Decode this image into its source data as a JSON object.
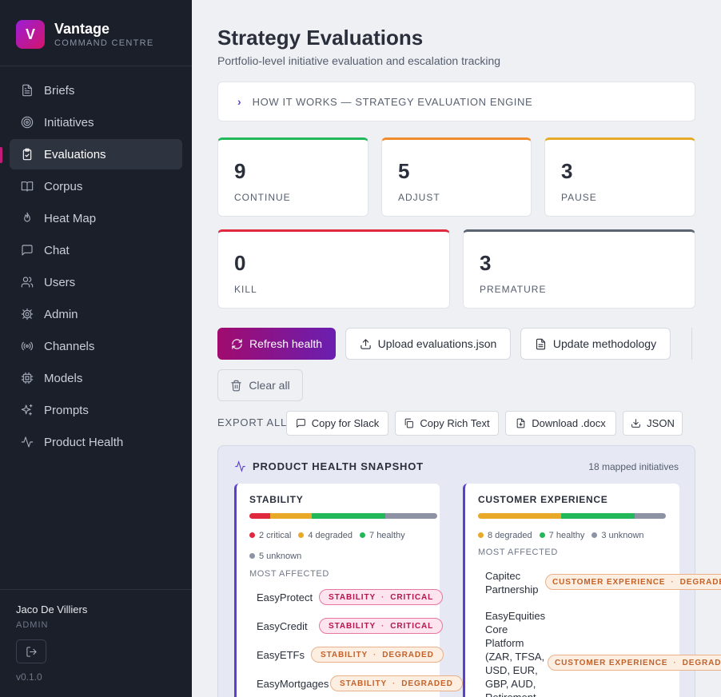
{
  "brand": {
    "logo_letter": "V",
    "name": "Vantage",
    "subtitle": "COMMAND CENTRE"
  },
  "nav": [
    {
      "label": "Briefs",
      "icon": "file-text-icon"
    },
    {
      "label": "Initiatives",
      "icon": "target-icon"
    },
    {
      "label": "Evaluations",
      "icon": "clipboard-check-icon",
      "active": true
    },
    {
      "label": "Corpus",
      "icon": "book-open-icon"
    },
    {
      "label": "Heat Map",
      "icon": "flame-icon"
    },
    {
      "label": "Chat",
      "icon": "chat-icon"
    },
    {
      "label": "Users",
      "icon": "users-icon"
    },
    {
      "label": "Admin",
      "icon": "gear-icon"
    },
    {
      "label": "Channels",
      "icon": "radio-icon"
    },
    {
      "label": "Models",
      "icon": "cpu-icon"
    },
    {
      "label": "Prompts",
      "icon": "sparkles-icon"
    },
    {
      "label": "Product Health",
      "icon": "activity-icon"
    }
  ],
  "user": {
    "name": "Jaco De Villiers",
    "role": "ADMIN"
  },
  "version": "v0.1.0",
  "page": {
    "title": "Strategy Evaluations",
    "subtitle": "Portfolio-level initiative evaluation and escalation tracking",
    "how_it_works": "HOW IT WORKS — STRATEGY EVALUATION ENGINE"
  },
  "stats": [
    {
      "value": "9",
      "label": "CONTINUE",
      "color": "#22b85a"
    },
    {
      "value": "5",
      "label": "ADJUST",
      "color": "#ef8d2e"
    },
    {
      "value": "3",
      "label": "PAUSE",
      "color": "#e8a928"
    },
    {
      "value": "0",
      "label": "KILL",
      "color": "#e0283f"
    },
    {
      "value": "3",
      "label": "PREMATURE",
      "color": "#5d6471"
    }
  ],
  "actions": {
    "refresh": "Refresh health",
    "upload": "Upload evaluations.json",
    "methodology": "Update methodology",
    "clear": "Clear all"
  },
  "export": {
    "label": "EXPORT ALL:",
    "slack": "Copy for Slack",
    "rich_text": "Copy Rich Text",
    "docx": "Download .docx",
    "json": "JSON"
  },
  "snapshot": {
    "title": "PRODUCT HEALTH SNAPSHOT",
    "count": "18 mapped initiatives",
    "most_affected_label": "MOST AFFECTED",
    "colors": {
      "critical": "#e0283f",
      "degraded": "#e8a928",
      "healthy": "#22b85a",
      "unknown": "#8d93a5"
    },
    "stability": {
      "title": "STABILITY",
      "counts": {
        "critical": 2,
        "degraded": 4,
        "healthy": 7,
        "unknown": 5
      },
      "legend": [
        "2 critical",
        "4 degraded",
        "7 healthy",
        "5 unknown"
      ],
      "affected": [
        {
          "name": "EasyProtect",
          "category": "STABILITY",
          "status": "CRITICAL"
        },
        {
          "name": "EasyCredit",
          "category": "STABILITY",
          "status": "CRITICAL"
        },
        {
          "name": "EasyETFs",
          "category": "STABILITY",
          "status": "DEGRADED"
        },
        {
          "name": "EasyMortgages",
          "category": "STABILITY",
          "status": "DEGRADED"
        }
      ]
    },
    "customer_experience": {
      "title": "CUSTOMER EXPERIENCE",
      "counts": {
        "critical": 0,
        "degraded": 8,
        "healthy": 7,
        "unknown": 3
      },
      "legend": [
        "8 degraded",
        "7 healthy",
        "3 unknown"
      ],
      "affected": [
        {
          "name": "Capitec Partnership",
          "category": "CUSTOMER EXPERIENCE",
          "status": "DEGRADED"
        },
        {
          "name": "EasyEquities Core Platform (ZAR, TFSA, USD, EUR, GBP, AUD, Retirement",
          "category": "CUSTOMER EXPERIENCE",
          "status": "DEGRADED"
        }
      ]
    }
  }
}
